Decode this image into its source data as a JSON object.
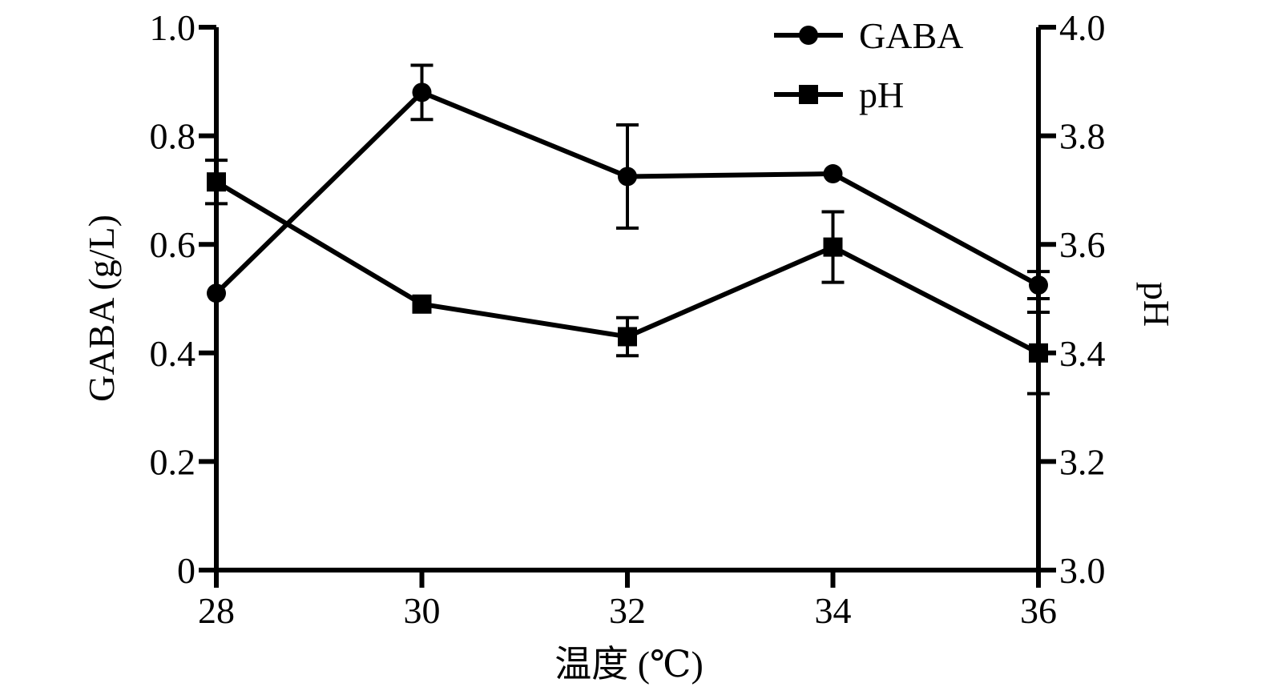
{
  "chart_data": {
    "type": "line",
    "x": [
      28,
      30,
      32,
      34,
      36
    ],
    "x_ticks": [
      "28",
      "30",
      "32",
      "34",
      "36"
    ],
    "xlabel": "温度 (℃)",
    "xlim": [
      28,
      36
    ],
    "ylabel_left": "GABA (g/L)",
    "ylim_left": [
      0,
      1.0
    ],
    "y_ticks_left": [
      "0",
      "0.2",
      "0.4",
      "0.6",
      "0.8",
      "1.0"
    ],
    "ylabel_right": "pH",
    "ylim_right": [
      3.0,
      4.0
    ],
    "y_ticks_right": [
      "3.0",
      "3.2",
      "3.4",
      "3.6",
      "3.8",
      "4.0"
    ],
    "grid": false,
    "legend_position": "top-right",
    "series": [
      {
        "name": "GABA",
        "marker": "circle",
        "axis": "left",
        "values": [
          0.51,
          0.88,
          0.725,
          0.73,
          0.525
        ],
        "errors": [
          0.0,
          0.05,
          0.095,
          0.0,
          0.025
        ]
      },
      {
        "name": "pH",
        "marker": "square",
        "axis": "right",
        "values": [
          3.715,
          3.49,
          3.43,
          3.595,
          3.4
        ],
        "errors": [
          0.04,
          0.0,
          0.035,
          0.065,
          0.075
        ]
      }
    ],
    "colors": {
      "line": "#000000"
    }
  }
}
